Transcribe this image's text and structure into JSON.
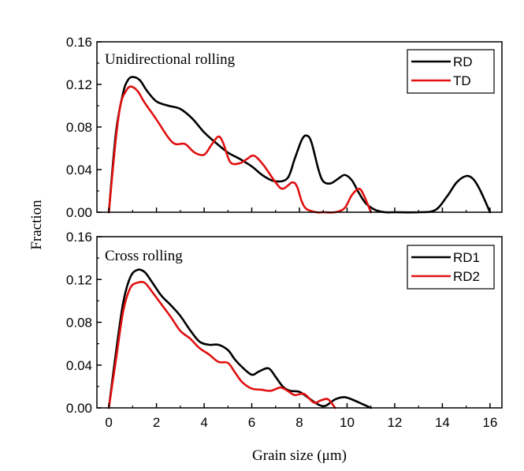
{
  "chart_data": {
    "type": "line",
    "xlabel": "Grain size (μm)",
    "ylabel": "Fraction",
    "xlim": [
      -0.5,
      16.5
    ],
    "xticks": [
      0,
      2,
      4,
      6,
      8,
      10,
      12,
      14,
      16
    ],
    "legend_position": "top-right",
    "panels": [
      {
        "title": "Unidirectional rolling",
        "ylim": [
          0,
          0.16
        ],
        "yticks": [
          "0.00",
          "0.04",
          "0.08",
          "0.12",
          "0.16"
        ],
        "series": [
          {
            "name": "RD",
            "color": "#000000",
            "x": [
              0,
              0.3,
              0.6,
              0.8,
              1.0,
              1.3,
              1.6,
              2.0,
              2.5,
              3.0,
              3.5,
              4.0,
              4.5,
              5.0,
              5.5,
              6.0,
              6.5,
              7.0,
              7.5,
              7.8,
              8.1,
              8.3,
              8.5,
              8.8,
              9.0,
              9.3,
              9.6,
              9.9,
              10.2,
              10.5,
              10.8,
              11.2,
              11.6,
              12.0,
              13.0,
              13.7,
              14.2,
              14.6,
              15.0,
              15.3,
              15.6,
              16.0
            ],
            "y": [
              0,
              0.075,
              0.112,
              0.124,
              0.127,
              0.124,
              0.114,
              0.104,
              0.1,
              0.097,
              0.088,
              0.075,
              0.065,
              0.056,
              0.05,
              0.043,
              0.034,
              0.029,
              0.032,
              0.05,
              0.068,
              0.072,
              0.066,
              0.04,
              0.029,
              0.027,
              0.031,
              0.035,
              0.03,
              0.018,
              0.008,
              0.002,
              0,
              0,
              0,
              0.002,
              0.015,
              0.028,
              0.034,
              0.031,
              0.02,
              0
            ]
          },
          {
            "name": "TD",
            "color": "#e01010",
            "x": [
              0,
              0.3,
              0.5,
              0.7,
              0.9,
              1.2,
              1.5,
              2.0,
              2.5,
              2.8,
              3.2,
              3.6,
              4.0,
              4.3,
              4.6,
              4.8,
              5.1,
              5.5,
              5.8,
              6.1,
              6.5,
              7.0,
              7.3,
              7.7,
              7.9,
              8.1,
              8.3,
              8.7,
              9.0,
              9.5,
              9.9,
              10.2,
              10.5,
              10.7,
              11.0
            ],
            "y": [
              0,
              0.07,
              0.102,
              0.113,
              0.118,
              0.114,
              0.103,
              0.087,
              0.07,
              0.064,
              0.064,
              0.056,
              0.054,
              0.063,
              0.071,
              0.065,
              0.047,
              0.046,
              0.05,
              0.053,
              0.044,
              0.028,
              0.022,
              0.028,
              0.024,
              0.01,
              0.003,
              0,
              0,
              0,
              0.004,
              0.016,
              0.022,
              0.016,
              0
            ]
          }
        ]
      },
      {
        "title": "Cross rolling",
        "ylim": [
          0,
          0.16
        ],
        "yticks": [
          "0.00",
          "0.04",
          "0.08",
          "0.12",
          "0.16"
        ],
        "series": [
          {
            "name": "RD1",
            "color": "#000000",
            "x": [
              0,
              0.3,
              0.6,
              0.9,
              1.2,
              1.5,
              1.8,
              2.2,
              2.6,
              3.0,
              3.4,
              3.8,
              4.2,
              4.6,
              5.0,
              5.3,
              5.6,
              6.0,
              6.3,
              6.7,
              7.0,
              7.3,
              7.6,
              8.0,
              8.4,
              8.8,
              9.1,
              9.5,
              9.9,
              10.3,
              10.7,
              11.0
            ],
            "y": [
              0,
              0.052,
              0.098,
              0.122,
              0.129,
              0.127,
              0.118,
              0.105,
              0.096,
              0.086,
              0.073,
              0.062,
              0.059,
              0.059,
              0.054,
              0.045,
              0.038,
              0.031,
              0.034,
              0.037,
              0.029,
              0.02,
              0.016,
              0.015,
              0.009,
              0.003,
              0.002,
              0.008,
              0.01,
              0.007,
              0.003,
              0
            ]
          },
          {
            "name": "RD2",
            "color": "#e01010",
            "x": [
              0,
              0.3,
              0.6,
              0.9,
              1.2,
              1.5,
              1.8,
              2.2,
              2.6,
              3.0,
              3.4,
              3.8,
              4.2,
              4.6,
              5.0,
              5.3,
              5.6,
              6.0,
              6.4,
              6.8,
              7.2,
              7.5,
              7.8,
              8.2,
              8.6,
              8.9,
              9.2,
              9.5
            ],
            "y": [
              0,
              0.045,
              0.09,
              0.112,
              0.117,
              0.117,
              0.109,
              0.097,
              0.085,
              0.072,
              0.065,
              0.056,
              0.05,
              0.043,
              0.042,
              0.033,
              0.024,
              0.018,
              0.017,
              0.016,
              0.019,
              0.016,
              0.012,
              0.013,
              0.005,
              0.007,
              0.008,
              0
            ]
          }
        ]
      }
    ]
  }
}
